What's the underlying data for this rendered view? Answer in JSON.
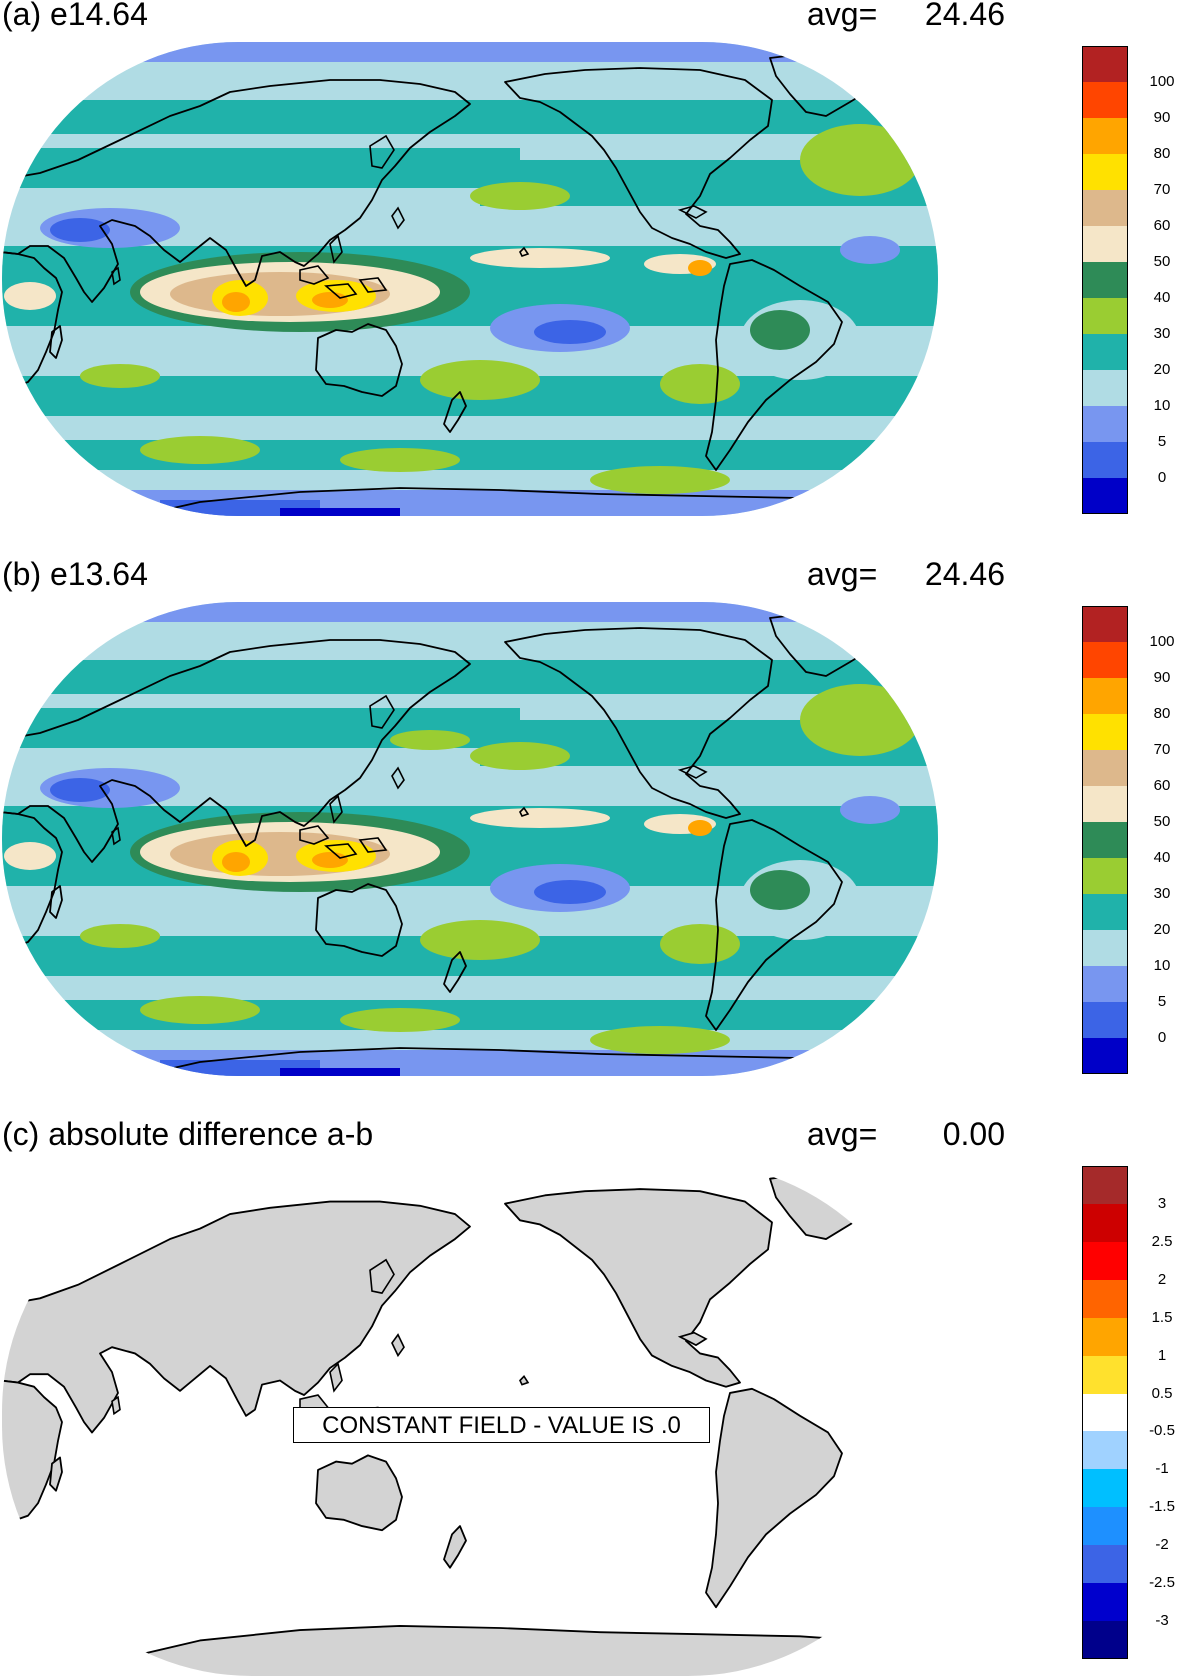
{
  "panels": [
    {
      "id": "a",
      "title": "(a) e14.64",
      "avg_label": "avg=",
      "avg_value": "24.46",
      "type": "precipitation-field"
    },
    {
      "id": "b",
      "title": "(b) e13.64",
      "avg_label": "avg=",
      "avg_value": "24.46",
      "type": "precipitation-field"
    },
    {
      "id": "c",
      "title": "(c) absolute difference a-b",
      "avg_label": "avg=",
      "avg_value": "0.00",
      "type": "difference-field",
      "constant_field_message": "CONSTANT FIELD - VALUE IS .0"
    }
  ],
  "colorbar_field": {
    "colors": [
      "#0000c8",
      "#3c64e6",
      "#7896f0",
      "#b0dce4",
      "#20b2aa",
      "#9acd32",
      "#2e8b57",
      "#f5e6c8",
      "#ddb88c",
      "#ffe100",
      "#ffa500",
      "#ff4500",
      "#b22222"
    ],
    "labels": [
      "0",
      "5",
      "10",
      "20",
      "30",
      "40",
      "50",
      "60",
      "70",
      "80",
      "90",
      "100"
    ]
  },
  "colorbar_diff": {
    "colors": [
      "#00008b",
      "#0000cd",
      "#3c64e6",
      "#1e90ff",
      "#00bfff",
      "#a0d2ff",
      "#ffffff",
      "#ffe12d",
      "#ffa500",
      "#ff6400",
      "#ff0000",
      "#cd0000",
      "#a52a2a"
    ],
    "labels": [
      "-3",
      "-2.5",
      "-2",
      "-1.5",
      "-1",
      "-0.5",
      "0.5",
      "1",
      "1.5",
      "2",
      "2.5",
      "3"
    ]
  }
}
